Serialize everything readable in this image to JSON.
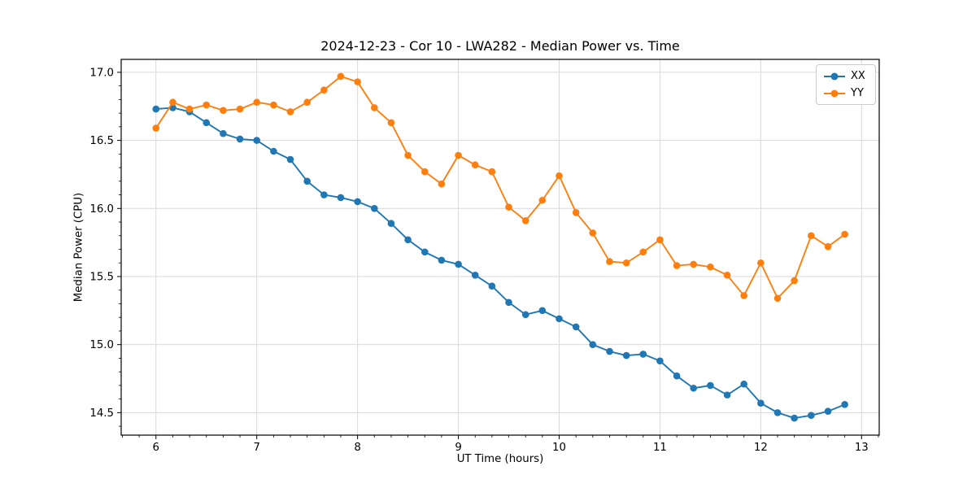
{
  "title": "2024-12-23 - Cor 10 - LWA282 - Median Power vs. Time",
  "colors": {
    "series_xx": "#1f77b4",
    "series_yy": "#ff7f0e",
    "grid": "#d9d9d9",
    "spine": "#000000",
    "background": "#ffffff",
    "legend_border": "#cccccc"
  },
  "legend": {
    "position": "top-right",
    "items": [
      {
        "label": "XX",
        "color": "#1f77b4"
      },
      {
        "label": "YY",
        "color": "#ff7f0e"
      }
    ]
  },
  "chart_data": {
    "type": "line",
    "title": "2024-12-23 - Cor 10 - LWA282 - Median Power vs. Time",
    "xlabel": "UT Time (hours)",
    "ylabel": "Median Power (CPU)",
    "xlim": [
      5.655,
      13.175
    ],
    "ylim": [
      14.335,
      17.095
    ],
    "x_major_ticks": [
      6,
      7,
      8,
      9,
      10,
      11,
      12,
      13
    ],
    "y_major_ticks": [
      14.5,
      15.0,
      15.5,
      16.0,
      16.5,
      17.0
    ],
    "x_minor_step": 0.1666667,
    "y_minor_step": 0.1,
    "grid": true,
    "marker": "circle",
    "legend_position": "top-right",
    "x": [
      6.0,
      6.167,
      6.333,
      6.5,
      6.667,
      6.833,
      7.0,
      7.167,
      7.333,
      7.5,
      7.667,
      7.833,
      8.0,
      8.167,
      8.333,
      8.5,
      8.667,
      8.833,
      9.0,
      9.167,
      9.333,
      9.5,
      9.667,
      9.833,
      10.0,
      10.167,
      10.333,
      10.5,
      10.667,
      10.833,
      11.0,
      11.167,
      11.333,
      11.5,
      11.667,
      11.833,
      12.0,
      12.167,
      12.333,
      12.5,
      12.667,
      12.833
    ],
    "series": [
      {
        "name": "XX",
        "color": "#1f77b4",
        "values": [
          16.73,
          16.74,
          16.71,
          16.63,
          16.55,
          16.51,
          16.5,
          16.42,
          16.36,
          16.2,
          16.1,
          16.08,
          16.05,
          16.0,
          15.89,
          15.77,
          15.68,
          15.62,
          15.59,
          15.51,
          15.43,
          15.31,
          15.22,
          15.25,
          15.19,
          15.13,
          15.0,
          14.95,
          14.92,
          14.93,
          14.88,
          14.77,
          14.68,
          14.7,
          14.63,
          14.71,
          14.57,
          14.5,
          14.46,
          14.48,
          14.51,
          14.56
        ]
      },
      {
        "name": "YY",
        "color": "#ff7f0e",
        "values": [
          16.59,
          16.78,
          16.73,
          16.76,
          16.72,
          16.73,
          16.78,
          16.76,
          16.71,
          16.78,
          16.87,
          16.97,
          16.93,
          16.74,
          16.63,
          16.39,
          16.27,
          16.18,
          16.39,
          16.32,
          16.27,
          16.01,
          15.91,
          16.06,
          16.24,
          15.97,
          15.82,
          15.61,
          15.6,
          15.68,
          15.77,
          15.58,
          15.59,
          15.57,
          15.51,
          15.36,
          15.6,
          15.34,
          15.47,
          15.8,
          15.72,
          15.81
        ]
      }
    ]
  }
}
